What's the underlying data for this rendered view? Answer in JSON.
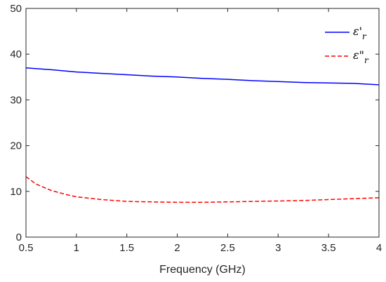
{
  "chart_data": {
    "type": "line",
    "xlabel": "Frequency (GHz)",
    "ylabel": "",
    "title": "",
    "xlim": [
      0.5,
      4
    ],
    "ylim": [
      0,
      50
    ],
    "xticks": [
      "0.5",
      "1",
      "1.5",
      "2",
      "2.5",
      "3",
      "3.5",
      "4"
    ],
    "yticks": [
      "0",
      "10",
      "20",
      "30",
      "40",
      "50"
    ],
    "legend_position": "top-right",
    "series": [
      {
        "name": "ε'r",
        "name_base": "ε'",
        "name_sub": "r",
        "color": "#0000ff",
        "style": "solid",
        "x": [
          0.5,
          0.75,
          1.0,
          1.25,
          1.5,
          1.75,
          2.0,
          2.25,
          2.5,
          2.75,
          3.0,
          3.25,
          3.5,
          3.75,
          4.0
        ],
        "y": [
          37.0,
          36.6,
          36.1,
          35.8,
          35.5,
          35.2,
          35.0,
          34.7,
          34.5,
          34.2,
          34.0,
          33.8,
          33.7,
          33.6,
          33.3
        ]
      },
      {
        "name": "ε\"r",
        "name_base": "ε\"",
        "name_sub": "r",
        "color": "#ff0000",
        "style": "dashed",
        "x": [
          0.5,
          0.6,
          0.75,
          0.9,
          1.0,
          1.25,
          1.5,
          1.75,
          2.0,
          2.25,
          2.5,
          2.75,
          3.0,
          3.25,
          3.5,
          3.75,
          4.0
        ],
        "y": [
          13.2,
          11.6,
          10.2,
          9.3,
          8.8,
          8.2,
          7.8,
          7.7,
          7.6,
          7.6,
          7.7,
          7.8,
          7.9,
          8.0,
          8.2,
          8.4,
          8.6
        ]
      }
    ]
  }
}
